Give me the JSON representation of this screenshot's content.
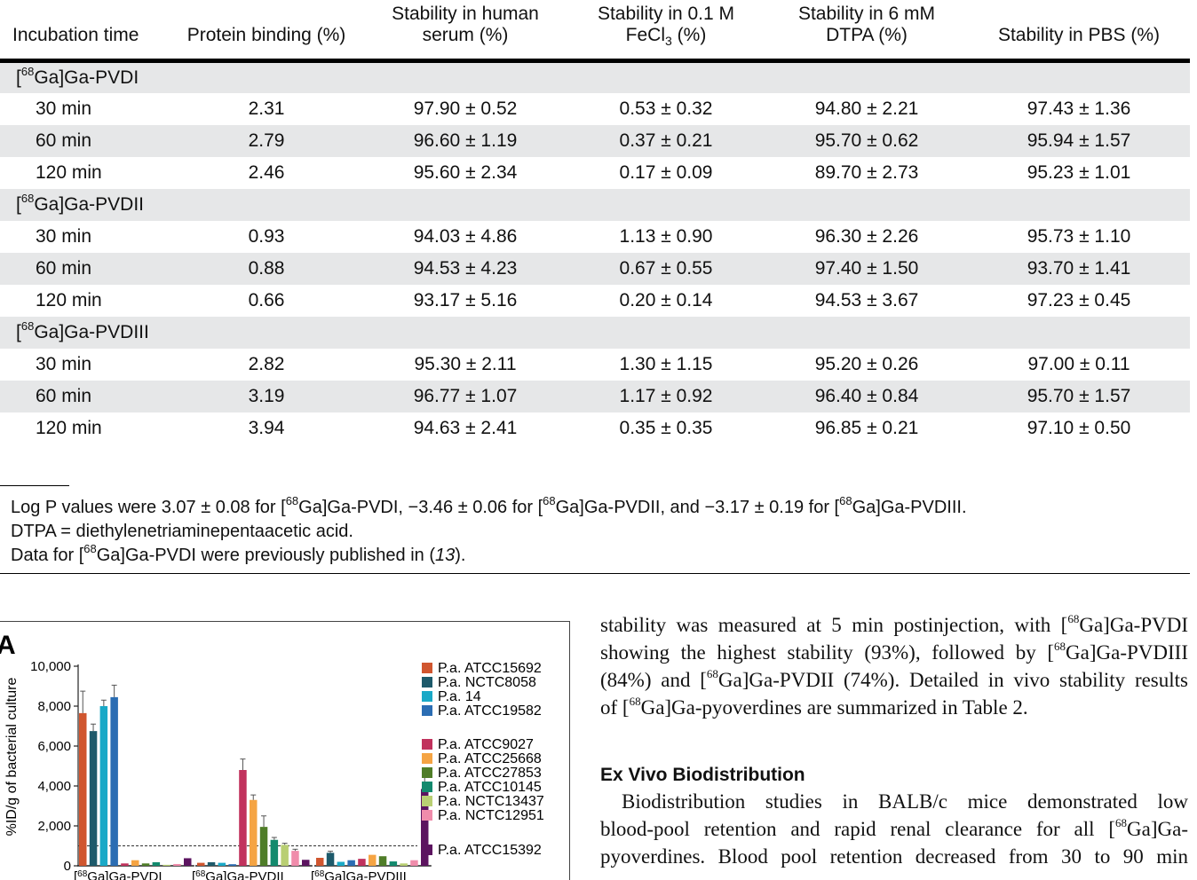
{
  "table": {
    "headers": [
      {
        "line1": "",
        "line2": "Incubation time"
      },
      {
        "line1": "",
        "line2": "Protein binding (%)"
      },
      {
        "line1": "Stability in human",
        "line2": "serum (%)"
      },
      {
        "line1": "Stability in 0.1 M",
        "line2_pre": "FeCl",
        "line2_sub": "3",
        "line2_post": " (%)"
      },
      {
        "line1": "Stability in 6 mM",
        "line2": "DTPA (%)"
      },
      {
        "line1": "",
        "line2": "Stability in PBS (%)"
      }
    ],
    "groups": [
      {
        "iso": "68",
        "pre": "[",
        "name": "Ga]Ga-PVDI",
        "rows": [
          {
            "time": "30 min",
            "pb": "2.31",
            "serum": "97.90 ± 0.52",
            "fecl": "0.53 ± 0.32",
            "dtpa": "94.80 ± 2.21",
            "pbs": "97.43 ± 1.36"
          },
          {
            "time": "60 min",
            "pb": "2.79",
            "serum": "96.60 ± 1.19",
            "fecl": "0.37 ± 0.21",
            "dtpa": "95.70 ± 0.62",
            "pbs": "95.94 ± 1.57"
          },
          {
            "time": "120 min",
            "pb": "2.46",
            "serum": "95.60 ± 2.34",
            "fecl": "0.17 ± 0.09",
            "dtpa": "89.70 ± 2.73",
            "pbs": "95.23 ± 1.01"
          }
        ]
      },
      {
        "iso": "68",
        "pre": "[",
        "name": "Ga]Ga-PVDII",
        "rows": [
          {
            "time": "30 min",
            "pb": "0.93",
            "serum": "94.03 ± 4.86",
            "fecl": "1.13 ± 0.90",
            "dtpa": "96.30 ± 2.26",
            "pbs": "95.73 ± 1.10"
          },
          {
            "time": "60 min",
            "pb": "0.88",
            "serum": "94.53 ± 4.23",
            "fecl": "0.67 ± 0.55",
            "dtpa": "97.40 ± 1.50",
            "pbs": "93.70 ± 1.41"
          },
          {
            "time": "120 min",
            "pb": "0.66",
            "serum": "93.17 ± 5.16",
            "fecl": "0.20 ± 0.14",
            "dtpa": "94.53 ± 3.67",
            "pbs": "97.23 ± 0.45"
          }
        ]
      },
      {
        "iso": "68",
        "pre": "[",
        "name": "Ga]Ga-PVDIII",
        "rows": [
          {
            "time": "30 min",
            "pb": "2.82",
            "serum": "95.30 ± 2.11",
            "fecl": "1.30 ± 1.15",
            "dtpa": "95.20 ± 0.26",
            "pbs": "97.00 ± 0.11"
          },
          {
            "time": "60 min",
            "pb": "3.19",
            "serum": "96.77 ± 1.07",
            "fecl": "1.17 ± 0.92",
            "dtpa": "96.40 ± 0.84",
            "pbs": "95.70 ± 1.57"
          },
          {
            "time": "120 min",
            "pb": "3.94",
            "serum": "94.63 ± 2.41",
            "fecl": "0.35 ± 0.35",
            "dtpa": "96.85 ± 0.21",
            "pbs": "97.10 ± 0.50"
          }
        ]
      }
    ]
  },
  "footnotes": {
    "logp": {
      "a": "Log P values were 3.07 ± 0.08 for [",
      "b": "Ga]Ga-PVDI, −3.46 ± 0.06 for [",
      "c": "Ga]Ga-PVDII, and −3.17 ± 0.19 for [",
      "d": "Ga]Ga-PVDIII.",
      "iso": "68"
    },
    "dtpa": "DTPA = diethylenetriaminepentaacetic acid.",
    "data": {
      "a": "Data for [",
      "iso": "68",
      "b": "Ga]Ga-PVDI were previously published in (",
      "ref": "13",
      "c": ")."
    }
  },
  "figure": {
    "panel_label": "A",
    "ylabel": "%ID/g of bacterial culture",
    "y_tick_labels": [
      "10,000",
      "8,000",
      "6,000",
      "4,000",
      "2,000",
      "0"
    ],
    "x_group_labels": [
      "Ga]Ga-PVDI",
      "Ga]Ga-PVDII",
      "Ga]Ga-PVDIII"
    ],
    "x_group_prefix": "[",
    "x_group_iso": "68",
    "legend": [
      {
        "label": "P.a. ATCC15692",
        "color": "#d0562f"
      },
      {
        "label": "P.a. NCTC8058",
        "color": "#1d5a6b"
      },
      {
        "label": "P.a. 14",
        "color": "#1aa9c7"
      },
      {
        "label": "P.a. ATCC19582",
        "color": "#2b6db3"
      },
      {
        "label": "P.a. ATCC9027",
        "color": "#c1325d"
      },
      {
        "label": "P.a. ATCC25668",
        "color": "#f5a443"
      },
      {
        "label": "P.a. ATCC27853",
        "color": "#4f7d28"
      },
      {
        "label": "P.a. ATCC10145",
        "color": "#138a6e"
      },
      {
        "label": "P.a. NCTC13437",
        "color": "#b9cf73"
      },
      {
        "label": "P.a. NCTC12951",
        "color": "#f08cab"
      },
      {
        "label": "P.a. ATCC15392",
        "color": "#5c1460"
      }
    ]
  },
  "chart_data": {
    "type": "bar",
    "categories": [
      "[68Ga]Ga-PVDI",
      "[68Ga]Ga-PVDII",
      "[68Ga]Ga-PVDIII"
    ],
    "ylabel": "%ID/g of bacterial culture",
    "ylim": [
      0,
      10000
    ],
    "reference_line": 1000,
    "grid": false,
    "legend_placement": "right",
    "series": [
      {
        "name": "P.a. ATCC15692",
        "values": [
          7650,
          150,
          400
        ],
        "errors": [
          1100,
          30,
          60
        ]
      },
      {
        "name": "P.a. NCTC8058",
        "values": [
          6750,
          180,
          650
        ],
        "errors": [
          350,
          30,
          80
        ]
      },
      {
        "name": "P.a. 14",
        "values": [
          8000,
          150,
          200
        ],
        "errors": [
          300,
          30,
          40
        ]
      },
      {
        "name": "P.a. ATCC19582",
        "values": [
          8450,
          80,
          280
        ],
        "errors": [
          600,
          20,
          40
        ]
      },
      {
        "name": "P.a. ATCC9027",
        "values": [
          120,
          4800,
          350
        ],
        "errors": [
          30,
          550,
          50
        ]
      },
      {
        "name": "P.a. ATCC25668",
        "values": [
          280,
          3300,
          550
        ],
        "errors": [
          40,
          250,
          60
        ]
      },
      {
        "name": "P.a. ATCC27853",
        "values": [
          120,
          1950,
          480
        ],
        "errors": [
          30,
          550,
          50
        ]
      },
      {
        "name": "P.a. ATCC10145",
        "values": [
          180,
          1300,
          220
        ],
        "errors": [
          30,
          120,
          40
        ]
      },
      {
        "name": "P.a. NCTC13437",
        "values": [
          50,
          1050,
          120
        ],
        "errors": [
          20,
          80,
          30
        ]
      },
      {
        "name": "P.a. NCTC12951",
        "values": [
          90,
          750,
          280
        ],
        "errors": [
          20,
          80,
          40
        ]
      },
      {
        "name": "P.a. ATCC15392",
        "values": [
          380,
          300,
          3850
        ],
        "errors": [
          50,
          40,
          650
        ]
      }
    ]
  },
  "body": {
    "para1": [
      {
        "t": "stability was measured at 5 min postinjection, with [",
        "iso": "68",
        "t2": "Ga]Ga-PVDI"
      },
      {
        "t": "showing the highest stability (93%), followed by [",
        "iso": "68",
        "t2": "Ga]Ga-PVDIII"
      },
      {
        "t": "(84%) and [",
        "iso": "68",
        "t2": "Ga]Ga-PVDII (74%). Detailed in vivo stability results"
      },
      {
        "t": "of [",
        "iso": "68",
        "t2": "Ga]Ga-pyoverdines are summarized in Table 2."
      }
    ],
    "heading": "Ex Vivo Biodistribution",
    "para2": [
      {
        "t": "Biodistribution studies in BALB/c mice demonstrated low"
      },
      {
        "t": "blood-pool retention and rapid renal clearance for all [",
        "iso": "68",
        "t2": "Ga]Ga-"
      },
      {
        "t": "pyoverdines. Blood pool retention decreased from 30 to 90 min"
      }
    ]
  }
}
